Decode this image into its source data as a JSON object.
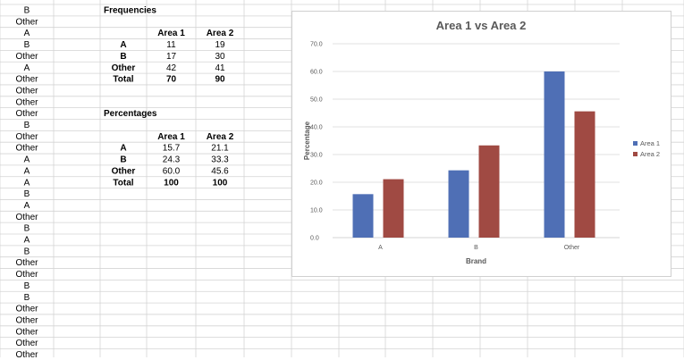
{
  "column_a": [
    "B",
    "Other",
    "A",
    "B",
    "Other",
    "A",
    "Other",
    "Other",
    "Other",
    "Other",
    "B",
    "Other",
    "Other",
    "A",
    "A",
    "A",
    "B",
    "A",
    "Other",
    "B",
    "A",
    "B",
    "Other",
    "Other",
    "B",
    "B",
    "Other",
    "Other",
    "Other",
    "Other",
    "Other"
  ],
  "frequencies": {
    "title": "Frequencies",
    "headers": [
      "Area 1",
      "Area 2"
    ],
    "rows": [
      {
        "label": "A",
        "v1": "11",
        "v2": "19"
      },
      {
        "label": "B",
        "v1": "17",
        "v2": "30"
      },
      {
        "label": "Other",
        "v1": "42",
        "v2": "41"
      },
      {
        "label": "Total",
        "v1": "70",
        "v2": "90"
      }
    ]
  },
  "percentages": {
    "title": "Percentages",
    "headers": [
      "Area 1",
      "Area 2"
    ],
    "rows": [
      {
        "label": "A",
        "v1": "15.7",
        "v2": "21.1"
      },
      {
        "label": "B",
        "v1": "24.3",
        "v2": "33.3"
      },
      {
        "label": "Other",
        "v1": "60.0",
        "v2": "45.6"
      },
      {
        "label": "Total",
        "v1": "100",
        "v2": "100"
      }
    ]
  },
  "colors": {
    "area1": "#4f6fb5",
    "area2": "#a04a43",
    "grid": "#d8d8d8",
    "axis": "#c8c8c8",
    "text": "#595959"
  },
  "chart_data": {
    "type": "bar",
    "title": "Area 1 vs Area 2",
    "xlabel": "Brand",
    "ylabel": "Percentage",
    "categories": [
      "A",
      "B",
      "Other"
    ],
    "series": [
      {
        "name": "Area 1",
        "values": [
          15.7,
          24.3,
          60.0
        ]
      },
      {
        "name": "Area 2",
        "values": [
          21.1,
          33.3,
          45.6
        ]
      }
    ],
    "ylim": [
      0,
      70
    ],
    "yticks": [
      "0.0",
      "10.0",
      "20.0",
      "30.0",
      "40.0",
      "50.0",
      "60.0",
      "70.0"
    ],
    "legend": "right"
  }
}
